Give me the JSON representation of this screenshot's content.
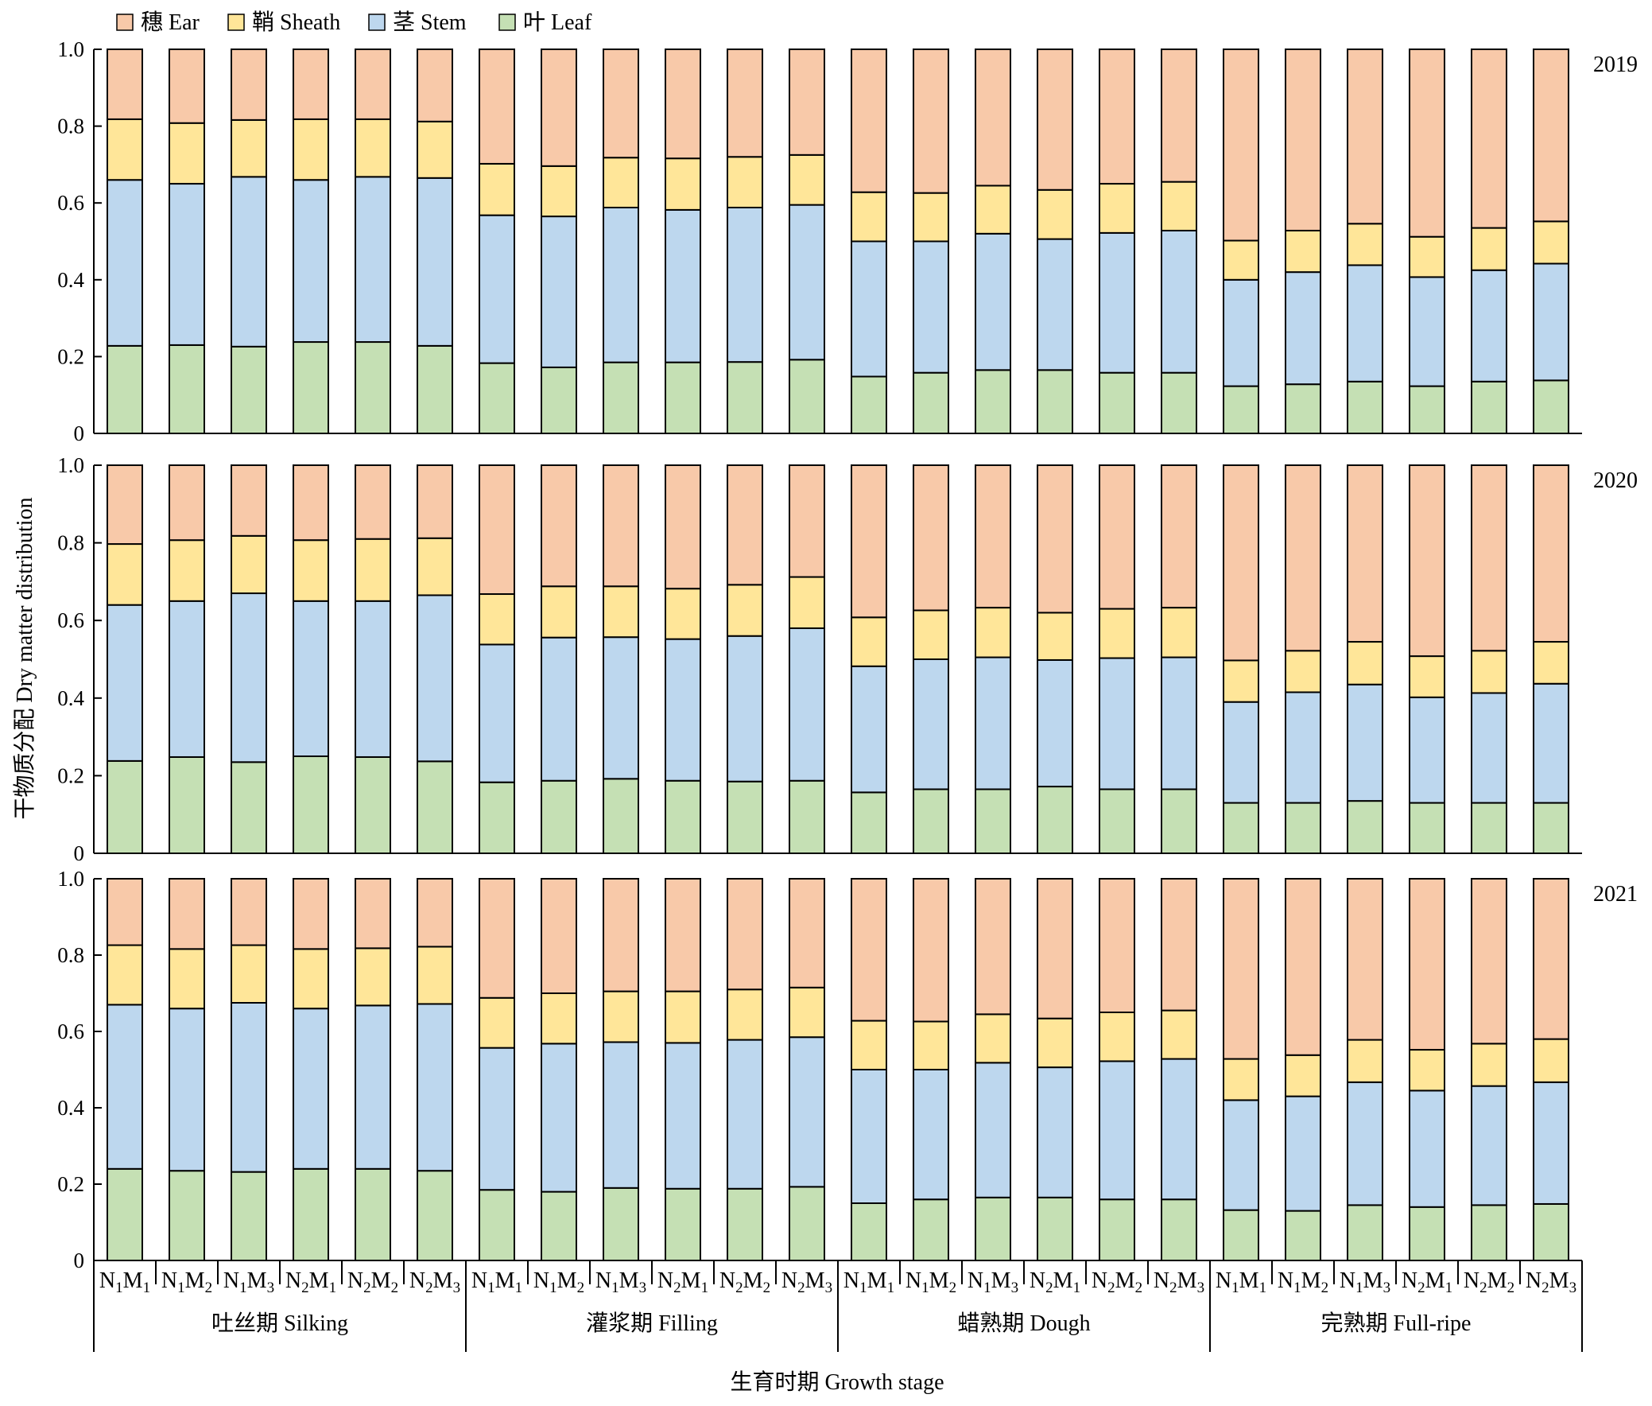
{
  "legend": [
    {
      "key": "ear",
      "label": "穗 Ear",
      "color": "#F8C9A9"
    },
    {
      "key": "sheath",
      "label": "鞘 Sheath",
      "color": "#FFE699"
    },
    {
      "key": "stem",
      "label": "茎 Stem",
      "color": "#BDD7EE"
    },
    {
      "key": "leaf",
      "label": "叶 Leaf",
      "color": "#C5E0B4"
    }
  ],
  "chart_data": {
    "type": "bar",
    "stacked": true,
    "ylabel": "干物质分配 Dry matter distribution",
    "xlabel": "生育时期 Growth stage",
    "ylim": [
      0,
      1
    ],
    "yticks": [
      "0",
      "0.2",
      "0.4",
      "0.6",
      "0.8",
      "1.0"
    ],
    "treatments": [
      {
        "N": "1",
        "M": "1"
      },
      {
        "N": "1",
        "M": "2"
      },
      {
        "N": "1",
        "M": "3"
      },
      {
        "N": "2",
        "M": "1"
      },
      {
        "N": "2",
        "M": "2"
      },
      {
        "N": "2",
        "M": "3"
      }
    ],
    "stages": [
      "吐丝期 Silking",
      "灌浆期 Filling",
      "蜡熟期 Dough",
      "完熟期 Full-ripe"
    ],
    "stack_order": [
      "leaf",
      "stem",
      "sheath",
      "ear"
    ],
    "panels": [
      {
        "year": "2019",
        "cumulative": [
          [
            0.228,
            0.66,
            0.818
          ],
          [
            0.23,
            0.65,
            0.808
          ],
          [
            0.226,
            0.668,
            0.816
          ],
          [
            0.238,
            0.66,
            0.818
          ],
          [
            0.238,
            0.668,
            0.818
          ],
          [
            0.228,
            0.665,
            0.812
          ],
          [
            0.183,
            0.568,
            0.702
          ],
          [
            0.172,
            0.565,
            0.696
          ],
          [
            0.185,
            0.588,
            0.718
          ],
          [
            0.185,
            0.582,
            0.716
          ],
          [
            0.186,
            0.588,
            0.72
          ],
          [
            0.192,
            0.595,
            0.725
          ],
          [
            0.148,
            0.5,
            0.628
          ],
          [
            0.158,
            0.5,
            0.626
          ],
          [
            0.165,
            0.52,
            0.645
          ],
          [
            0.165,
            0.506,
            0.634
          ],
          [
            0.158,
            0.522,
            0.65
          ],
          [
            0.158,
            0.528,
            0.655
          ],
          [
            0.123,
            0.4,
            0.502
          ],
          [
            0.128,
            0.42,
            0.528
          ],
          [
            0.135,
            0.438,
            0.546
          ],
          [
            0.123,
            0.407,
            0.512
          ],
          [
            0.135,
            0.425,
            0.535
          ],
          [
            0.138,
            0.442,
            0.552
          ]
        ]
      },
      {
        "year": "2020",
        "cumulative": [
          [
            0.238,
            0.64,
            0.797
          ],
          [
            0.248,
            0.65,
            0.807
          ],
          [
            0.235,
            0.67,
            0.818
          ],
          [
            0.25,
            0.65,
            0.807
          ],
          [
            0.248,
            0.65,
            0.81
          ],
          [
            0.237,
            0.665,
            0.812
          ],
          [
            0.183,
            0.538,
            0.668
          ],
          [
            0.187,
            0.556,
            0.688
          ],
          [
            0.192,
            0.557,
            0.688
          ],
          [
            0.187,
            0.552,
            0.682
          ],
          [
            0.185,
            0.56,
            0.692
          ],
          [
            0.187,
            0.58,
            0.712
          ],
          [
            0.157,
            0.482,
            0.608
          ],
          [
            0.165,
            0.5,
            0.626
          ],
          [
            0.165,
            0.505,
            0.633
          ],
          [
            0.172,
            0.498,
            0.62
          ],
          [
            0.165,
            0.503,
            0.63
          ],
          [
            0.165,
            0.505,
            0.633
          ],
          [
            0.13,
            0.39,
            0.497
          ],
          [
            0.13,
            0.415,
            0.522
          ],
          [
            0.135,
            0.435,
            0.545
          ],
          [
            0.13,
            0.402,
            0.508
          ],
          [
            0.13,
            0.413,
            0.522
          ],
          [
            0.13,
            0.437,
            0.545
          ]
        ]
      },
      {
        "year": "2021",
        "cumulative": [
          [
            0.24,
            0.67,
            0.826
          ],
          [
            0.235,
            0.66,
            0.816
          ],
          [
            0.232,
            0.675,
            0.826
          ],
          [
            0.24,
            0.66,
            0.816
          ],
          [
            0.24,
            0.668,
            0.818
          ],
          [
            0.235,
            0.672,
            0.822
          ],
          [
            0.185,
            0.557,
            0.688
          ],
          [
            0.18,
            0.568,
            0.7
          ],
          [
            0.19,
            0.572,
            0.705
          ],
          [
            0.188,
            0.57,
            0.705
          ],
          [
            0.188,
            0.578,
            0.71
          ],
          [
            0.193,
            0.585,
            0.715
          ],
          [
            0.15,
            0.5,
            0.628
          ],
          [
            0.16,
            0.5,
            0.626
          ],
          [
            0.165,
            0.518,
            0.645
          ],
          [
            0.165,
            0.506,
            0.634
          ],
          [
            0.16,
            0.522,
            0.65
          ],
          [
            0.16,
            0.528,
            0.655
          ],
          [
            0.132,
            0.42,
            0.528
          ],
          [
            0.13,
            0.43,
            0.538
          ],
          [
            0.145,
            0.467,
            0.578
          ],
          [
            0.14,
            0.445,
            0.552
          ],
          [
            0.145,
            0.457,
            0.568
          ],
          [
            0.148,
            0.467,
            0.58
          ]
        ]
      }
    ]
  }
}
